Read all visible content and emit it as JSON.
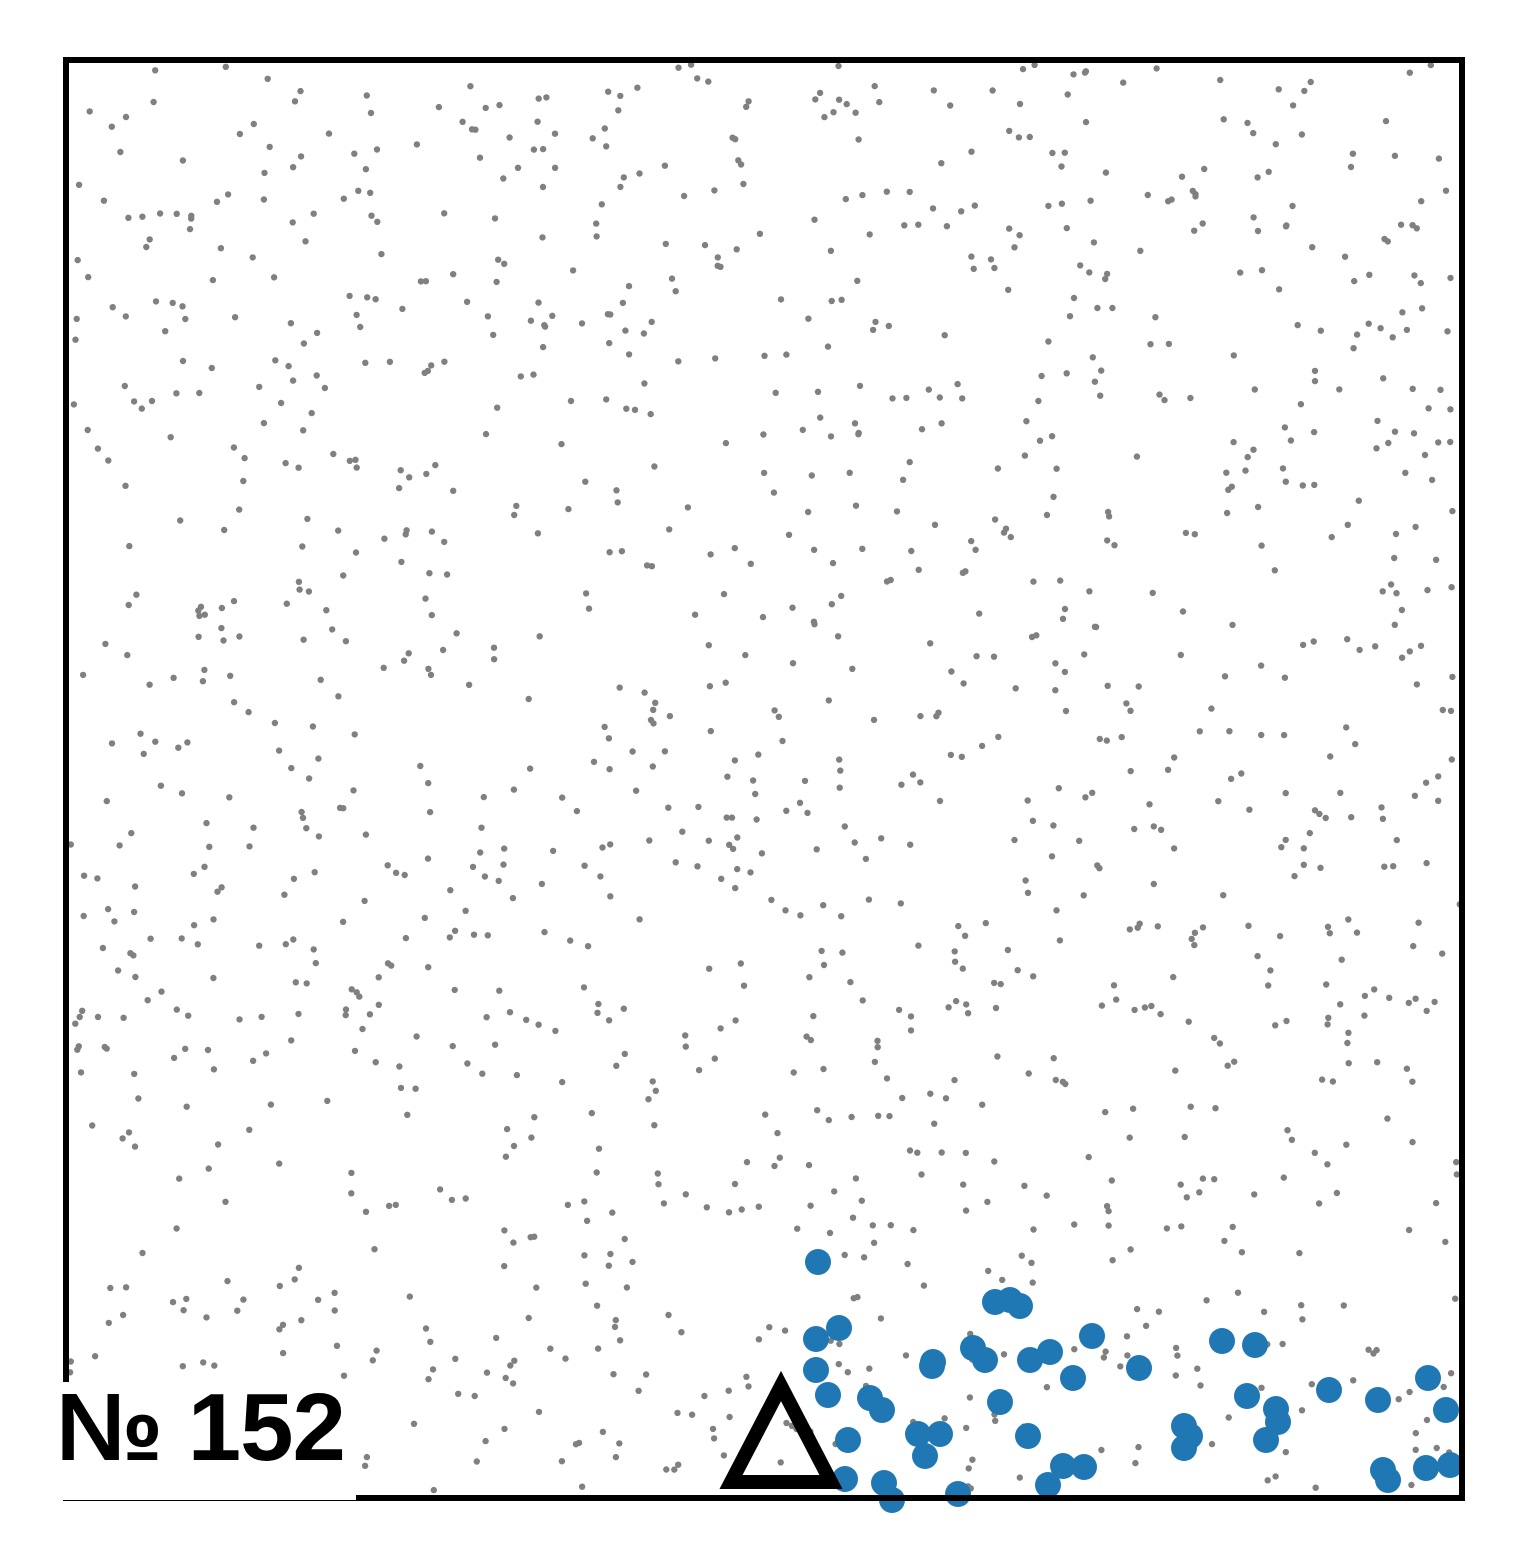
{
  "plate_label": "№ 152",
  "colors": {
    "background": "#ffffff",
    "frame": "#000000",
    "dots": "#808080",
    "highlight": "#1f77b4",
    "marker": "#000000"
  },
  "marker_icon": "triangle-outline-icon"
}
